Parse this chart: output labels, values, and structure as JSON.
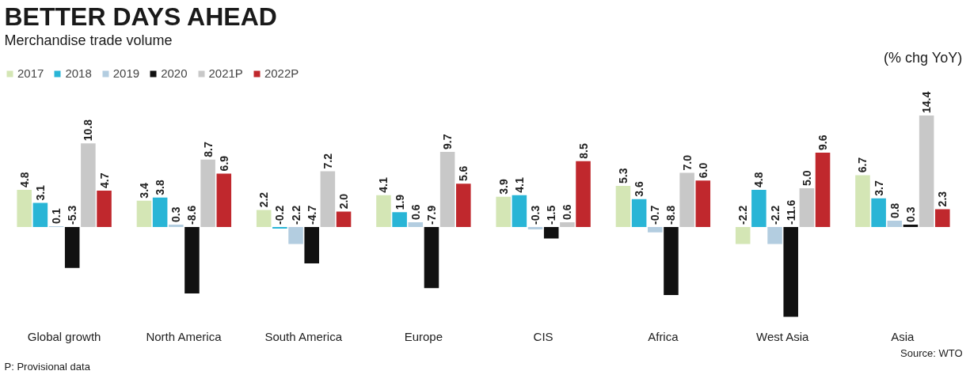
{
  "chart_data": {
    "type": "bar",
    "title": "BETTER DAYS AHEAD",
    "subtitle": "Merchandise trade volume",
    "categories": [
      "Global growth",
      "North America",
      "South America",
      "Europe",
      "CIS",
      "Africa",
      "West Asia",
      "Asia"
    ],
    "series": [
      {
        "name": "2017",
        "color": "#d4e6b5",
        "values": [
          4.8,
          3.4,
          2.2,
          4.1,
          3.9,
          5.3,
          -2.2,
          6.7
        ],
        "value_labels": [
          "4.8",
          "3.4",
          "2.2",
          "4.1",
          "3.9",
          "5.3",
          "-2.2",
          "6.7"
        ]
      },
      {
        "name": "2018",
        "color": "#29b5d6",
        "values": [
          3.1,
          3.8,
          -0.2,
          1.9,
          4.1,
          3.6,
          4.8,
          3.7
        ],
        "value_labels": [
          "3.1",
          "3.8",
          "-0.2",
          "1.9",
          "4.1",
          "3.6",
          "4.8",
          "3.7"
        ]
      },
      {
        "name": "2019",
        "color": "#b3cde0",
        "values": [
          0.1,
          0.3,
          -2.2,
          0.6,
          -0.3,
          -0.7,
          -2.2,
          0.8
        ],
        "value_labels": [
          "0.1",
          "0.3",
          "-2.2",
          "0.6",
          "-0.3",
          "-0.7",
          "-2.2",
          "0.8"
        ]
      },
      {
        "name": "2020",
        "color": "#111111",
        "values": [
          -5.3,
          -8.6,
          -4.7,
          -7.9,
          -1.5,
          -8.8,
          -11.6,
          0.3
        ],
        "value_labels": [
          "-5.3",
          "-8.6",
          "-4.7",
          "-7.9",
          "-1.5",
          "-8.8",
          "-11.6",
          "0.3"
        ]
      },
      {
        "name": "2021P",
        "color": "#c8c8c8",
        "values": [
          10.8,
          8.7,
          7.2,
          9.7,
          0.6,
          7.0,
          5.0,
          14.4
        ],
        "value_labels": [
          "10.8",
          "8.7",
          "7.2",
          "9.7",
          "0.6",
          "7.0",
          "5.0",
          "14.4"
        ]
      },
      {
        "name": "2022P",
        "color": "#c0282d",
        "values": [
          4.7,
          6.9,
          2.0,
          5.6,
          8.5,
          6.0,
          9.6,
          2.3
        ],
        "value_labels": [
          "4.7",
          "6.9",
          "2.0",
          "5.6",
          "8.5",
          "6.0",
          "9.6",
          "2.3"
        ]
      }
    ],
    "legend": "top left",
    "grid": false,
    "tick_labels": "x",
    "annotations": [
      "(% chg YoY)",
      "P: Provisional data",
      "Source: WTO"
    ]
  }
}
